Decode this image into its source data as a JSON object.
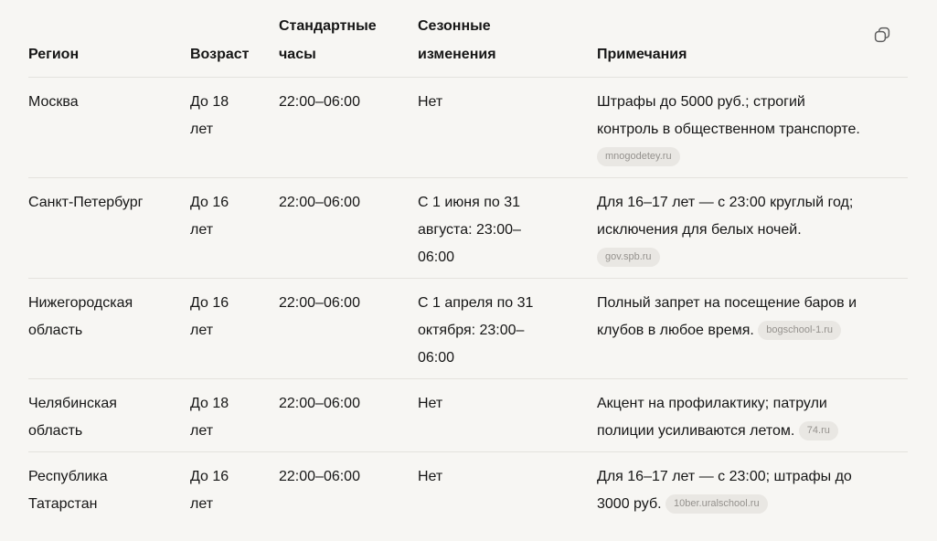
{
  "toolbar": {
    "copy_button": {
      "icon": "copy-icon",
      "tooltip": "Копировать"
    }
  },
  "colors": {
    "page_background": "#f7f6f3",
    "text": "#161616",
    "divider": "#e4e2de",
    "badge_background": "#e9e7e3",
    "badge_text": "#95928e",
    "icon": "#5f5f5f"
  },
  "table": {
    "columns": [
      {
        "key": "region",
        "label": "Регион"
      },
      {
        "key": "age",
        "label": "Возраст"
      },
      {
        "key": "hours",
        "label": "Стандартные часы"
      },
      {
        "key": "seasonal",
        "label": "Сезонные изменения"
      },
      {
        "key": "notes",
        "label": "Примечания"
      }
    ],
    "rows": [
      {
        "region": "Москва",
        "age": "До 18 лет",
        "hours": "22:00–06:00",
        "seasonal": "Нет",
        "notes": "Штрафы до 5000 руб.; строгий контроль в общественном транспорте.",
        "source": "mnogodetey.ru"
      },
      {
        "region": "Санкт-Петербург",
        "age": "До 16 лет",
        "hours": "22:00–06:00",
        "seasonal": "С 1 июня по 31 августа: 23:00–06:00",
        "notes": "Для 16–17 лет — с 23:00 круглый год; исключения для белых ночей.",
        "source": "gov.spb.ru"
      },
      {
        "region": "Нижегородская область",
        "age": "До 16 лет",
        "hours": "22:00–06:00",
        "seasonal": "С 1 апреля по 31 октября: 23:00–06:00",
        "notes": "Полный запрет на посещение баров и клубов в любое время.",
        "source": "bogschool-1.ru"
      },
      {
        "region": "Челябинская область",
        "age": "До 18 лет",
        "hours": "22:00–06:00",
        "seasonal": "Нет",
        "notes": "Акцент на профилактику; патрули полиции усиливаются летом.",
        "source": "74.ru"
      },
      {
        "region": "Республика Татарстан",
        "age": "До 16 лет",
        "hours": "22:00–06:00",
        "seasonal": "Нет",
        "notes": "Для 16–17 лет — с 23:00; штрафы до 3000 руб.",
        "source": "10ber.uralschool.ru"
      }
    ]
  }
}
